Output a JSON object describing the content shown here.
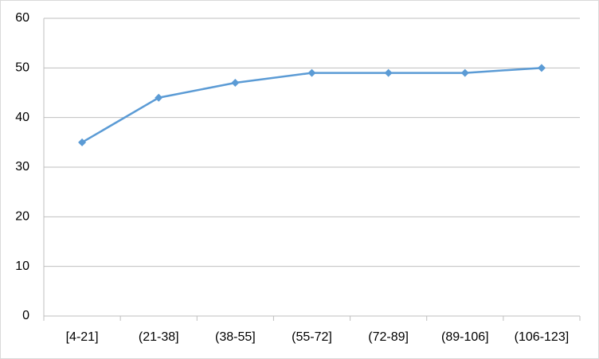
{
  "chart_data": {
    "type": "line",
    "categories": [
      "[4-21]",
      "(21-38]",
      "(38-55]",
      "(55-72]",
      "(72-89]",
      "(89-106]",
      "(106-123]"
    ],
    "values": [
      35,
      44,
      47,
      49,
      49,
      49,
      50
    ],
    "color": "#5b9bd5",
    "ylim": [
      0,
      60
    ],
    "yticks": [
      0,
      10,
      20,
      30,
      40,
      50,
      60
    ],
    "grid": true
  }
}
